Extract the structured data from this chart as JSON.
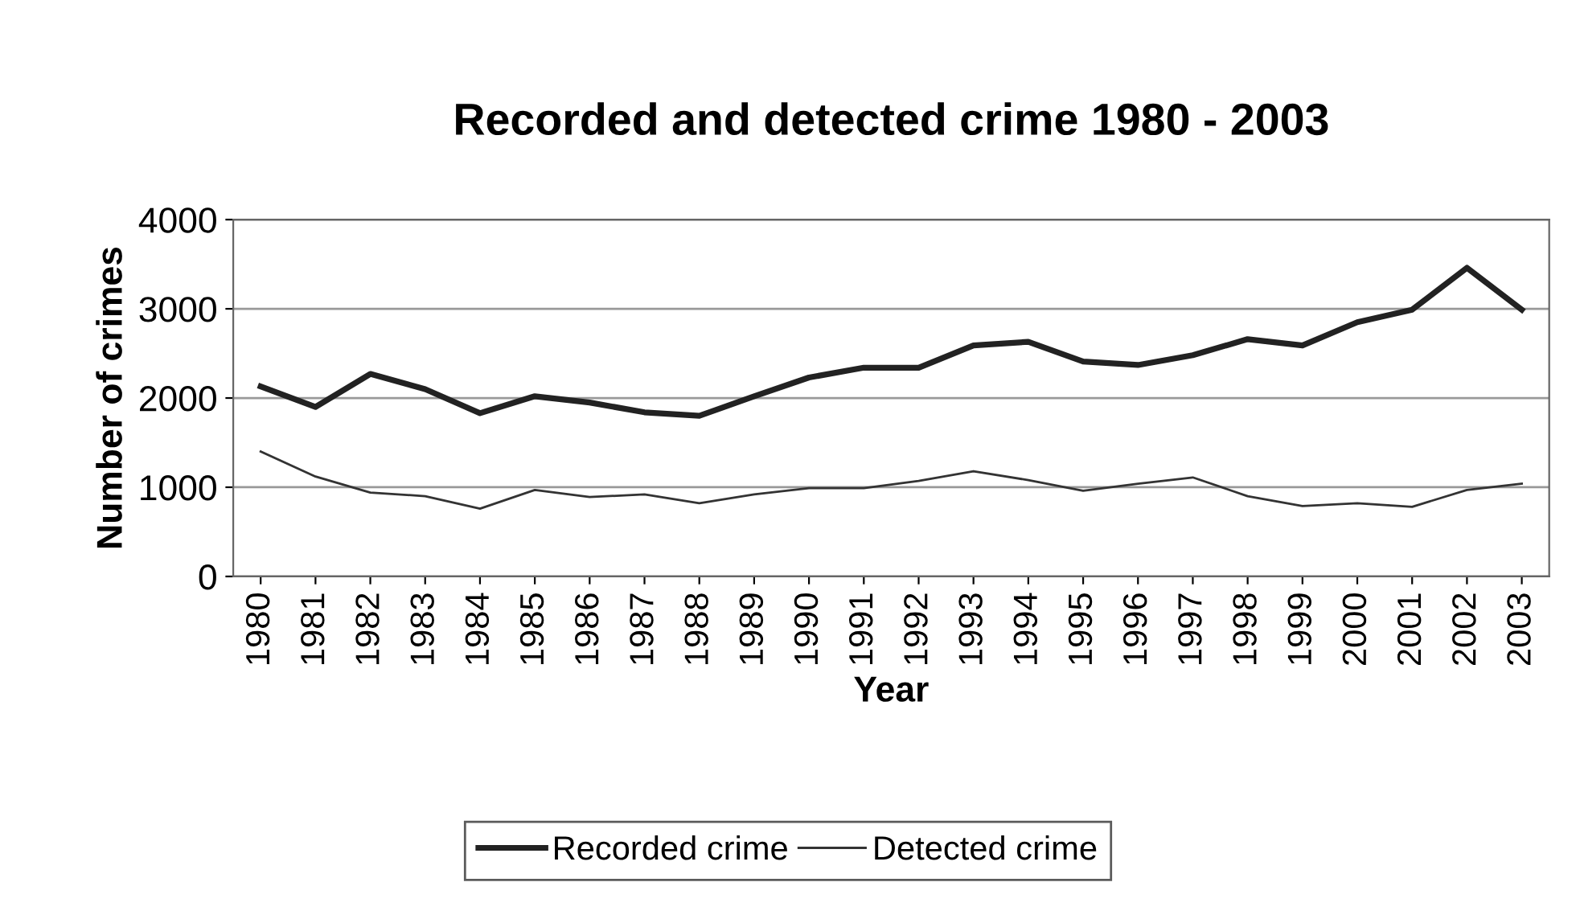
{
  "chart_data": {
    "type": "line",
    "title": "Recorded and detected crime 1980 - 2003",
    "xlabel": "Year",
    "ylabel": "Number of crimes",
    "categories": [
      "1980",
      "1981",
      "1982",
      "1983",
      "1984",
      "1985",
      "1986",
      "1987",
      "1988",
      "1989",
      "1990",
      "1991",
      "1992",
      "1993",
      "1994",
      "1995",
      "1996",
      "1997",
      "1998",
      "1999",
      "2000",
      "2001",
      "2002",
      "2003"
    ],
    "series": [
      {
        "name": "Recorded crime",
        "color": "#222222",
        "values": [
          2130,
          1900,
          2270,
          2100,
          1830,
          2020,
          1950,
          1840,
          1800,
          2020,
          2230,
          2340,
          2340,
          2590,
          2630,
          2410,
          2370,
          2480,
          2660,
          2590,
          2850,
          2990,
          3460,
          2990
        ]
      },
      {
        "name": "Detected crime",
        "color": "#333333",
        "values": [
          1400,
          1120,
          940,
          900,
          760,
          970,
          890,
          920,
          820,
          920,
          990,
          990,
          1070,
          1180,
          1080,
          960,
          1040,
          1110,
          900,
          790,
          820,
          780,
          970,
          1040
        ]
      }
    ],
    "ylim": [
      0,
      4000
    ],
    "yticks": [
      0,
      1000,
      2000,
      3000,
      4000
    ],
    "grid": "y",
    "legend": "bottom",
    "marker": "none",
    "line_style": "solid"
  }
}
